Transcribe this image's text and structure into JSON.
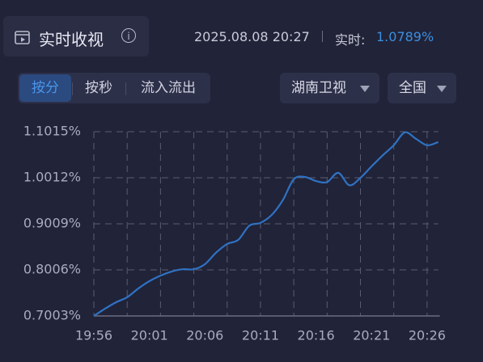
{
  "header": {
    "title": "实时收视",
    "timestamp": "2025.08.08 20:27",
    "realtime_label": "实时:",
    "realtime_value": "1.0789%"
  },
  "tabs": {
    "items": [
      "按分",
      "按秒",
      "流入流出"
    ],
    "active": 0
  },
  "dropdowns": [
    "湖南卫视",
    "全国"
  ],
  "chart_data": {
    "type": "line",
    "categories": [
      "19:56",
      null,
      null,
      null,
      null,
      "20:01",
      null,
      null,
      null,
      null,
      "20:06",
      null,
      null,
      null,
      null,
      "20:11",
      null,
      null,
      null,
      null,
      "20:16",
      null,
      null,
      null,
      null,
      "20:21",
      null,
      null,
      null,
      null,
      "20:26",
      null
    ],
    "series": [
      {
        "color": "#2f72c4",
        "values": [
          0.7003,
          0.716,
          0.73,
          0.741,
          0.76,
          0.776,
          0.788,
          0.797,
          0.802,
          0.802,
          0.813,
          0.838,
          0.857,
          0.866,
          0.897,
          0.903,
          0.92,
          0.952,
          0.998,
          1.003,
          0.994,
          0.992,
          1.012,
          0.985,
          1.001,
          1.026,
          1.05,
          1.072,
          1.1,
          1.086,
          1.072,
          1.079
        ]
      }
    ],
    "ylim": [
      0.7003,
      1.1015
    ],
    "yticks": [
      {
        "value": 0.7003,
        "label": "0.7003%"
      },
      {
        "value": 0.8006,
        "label": "0.8006%"
      },
      {
        "value": 0.9009,
        "label": "0.9009%"
      },
      {
        "value": 1.0012,
        "label": "1.0012%"
      },
      {
        "value": 1.1015,
        "label": "1.1015%"
      }
    ],
    "grid": true
  }
}
